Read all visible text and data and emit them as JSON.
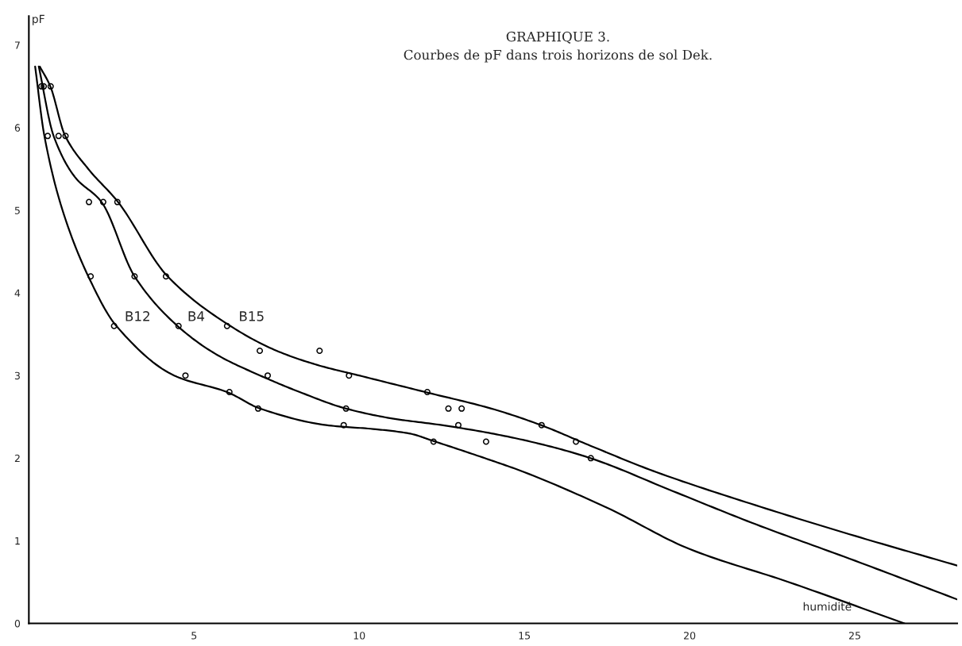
{
  "chart_data": {
    "type": "scatter",
    "title": "GRAPHIQUE 3.",
    "subtitle": "Courbes de pF dans trois horizons de sol Dek.",
    "xlabel": "humidité",
    "ylabel": "pF",
    "xlim": [
      0,
      28.1
    ],
    "ylim": [
      0,
      7.35
    ],
    "xticks": [
      5,
      10,
      15,
      20,
      25
    ],
    "yticks": [
      0,
      1,
      2,
      3,
      4,
      5,
      6,
      7
    ],
    "grid": false,
    "legend": false,
    "marker": "circle",
    "series": [
      {
        "color": "#000000",
        "x": [
          0.38,
          0.57,
          1.82,
          1.87,
          2.58,
          4.74,
          6.07,
          6.94,
          9.53,
          12.25
        ],
        "values": [
          6.5,
          5.9,
          5.1,
          4.2,
          3.6,
          3.0,
          2.8,
          2.6,
          2.4,
          2.2
        ]
      },
      {
        "color": "#000000",
        "x": [
          0.45,
          0.9,
          2.25,
          3.2,
          4.53,
          7.23,
          9.6,
          12.7,
          13.0,
          13.84,
          17.01
        ],
        "values": [
          6.5,
          5.9,
          5.1,
          4.2,
          3.6,
          3.0,
          2.6,
          2.6,
          2.4,
          2.2,
          2.0
        ]
      },
      {
        "color": "#000000",
        "x": [
          0.66,
          1.11,
          2.68,
          4.15,
          6.0,
          6.99,
          8.8,
          9.69,
          12.06,
          13.1,
          15.52,
          16.56
        ],
        "values": [
          6.5,
          5.9,
          5.1,
          4.2,
          3.6,
          3.3,
          3.3,
          3.0,
          2.8,
          2.6,
          2.4,
          2.2
        ]
      },
      {
        "type": "line",
        "color": "#000000",
        "marker": "none",
        "x": [
          0.19,
          0.47,
          1.02,
          1.8,
          2.65,
          4.4,
          6.0,
          7.0,
          9.0,
          10.5,
          11.5,
          12.3,
          13.8,
          15,
          17.5,
          20,
          23,
          26.5
        ],
        "values": [
          6.74,
          5.9,
          5.0,
          4.2,
          3.6,
          3.0,
          2.8,
          2.6,
          2.4,
          2.35,
          2.3,
          2.2,
          2.0,
          1.83,
          1.4,
          0.9,
          0.5,
          0
        ]
      },
      {
        "type": "line",
        "color": "#000000",
        "marker": "none",
        "x": [
          0.3,
          0.75,
          1.4,
          2.2,
          3.2,
          4.5,
          5.7,
          7.0,
          8.2,
          9.6,
          11,
          12.5,
          14,
          15.5,
          17.0,
          19.5,
          22,
          25,
          28.1
        ],
        "values": [
          6.74,
          5.9,
          5.4,
          5.1,
          4.2,
          3.6,
          3.25,
          3.0,
          2.8,
          2.6,
          2.48,
          2.4,
          2.3,
          2.17,
          2.0,
          1.6,
          1.2,
          0.76,
          0.29
        ]
      },
      {
        "type": "line",
        "color": "#000000",
        "marker": "none",
        "x": [
          0.33,
          0.65,
          1.1,
          1.8,
          2.7,
          4.2,
          6.1,
          7.5,
          8.8,
          10.0,
          12.0,
          14.0,
          15.5,
          17,
          19,
          22,
          25,
          28.1
        ],
        "values": [
          6.74,
          6.5,
          5.9,
          5.5,
          5.1,
          4.2,
          3.6,
          3.3,
          3.12,
          3.0,
          2.8,
          2.6,
          2.4,
          2.15,
          1.83,
          1.43,
          1.06,
          0.7
        ]
      }
    ],
    "annotations": [
      {
        "text": "B12",
        "x": 2.7,
        "y": 3.6
      },
      {
        "text": "B4",
        "x": 4.6,
        "y": 3.6
      },
      {
        "text": "B15",
        "x": 6.15,
        "y": 3.6
      }
    ]
  }
}
